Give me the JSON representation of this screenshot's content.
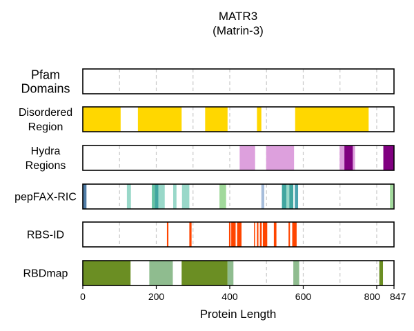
{
  "chart_data": {
    "type": "bar",
    "title": "MATR3",
    "subtitle": "(Matrin-3)",
    "xlabel": "Protein Length",
    "xlim": [
      0,
      847
    ],
    "xticks": [
      0,
      200,
      400,
      600,
      800,
      847
    ],
    "grid_x": [
      100,
      200,
      300,
      400,
      500,
      600,
      700,
      800
    ],
    "grid": "vertical dashed",
    "tracks": [
      {
        "label_lines": [
          "Pfam",
          "Domains"
        ],
        "segments": []
      },
      {
        "label_lines": [
          "Disordered",
          "Region"
        ],
        "segments": [
          {
            "start": 0,
            "end": 103,
            "color": "#ffd700"
          },
          {
            "start": 150,
            "end": 269,
            "color": "#ffd700"
          },
          {
            "start": 333,
            "end": 394,
            "color": "#ffd700"
          },
          {
            "start": 474,
            "end": 486,
            "color": "#ffd700"
          },
          {
            "start": 578,
            "end": 778,
            "color": "#ffd700"
          }
        ]
      },
      {
        "label_lines": [
          "Hydra",
          "Regions"
        ],
        "segments": [
          {
            "start": 427,
            "end": 469,
            "color": "#dda0dd"
          },
          {
            "start": 499,
            "end": 575,
            "color": "#dda0dd"
          },
          {
            "start": 699,
            "end": 712,
            "color": "#dda0dd"
          },
          {
            "start": 712,
            "end": 735,
            "color": "#800080"
          },
          {
            "start": 735,
            "end": 741,
            "color": "#dda0dd"
          },
          {
            "start": 818,
            "end": 847,
            "color": "#800080"
          }
        ]
      },
      {
        "label_lines": [
          "pepFAX-RIC"
        ],
        "segments": [
          {
            "start": 0,
            "end": 10,
            "color": "#4f7ca6"
          },
          {
            "start": 120,
            "end": 131,
            "color": "#99d8c9"
          },
          {
            "start": 188,
            "end": 196,
            "color": "#66c2a4"
          },
          {
            "start": 196,
            "end": 206,
            "color": "#41a6a0"
          },
          {
            "start": 206,
            "end": 223,
            "color": "#99d8c9"
          },
          {
            "start": 246,
            "end": 255,
            "color": "#99d8c9"
          },
          {
            "start": 270,
            "end": 290,
            "color": "#99d8c9"
          },
          {
            "start": 372,
            "end": 390,
            "color": "#a1d99b"
          },
          {
            "start": 486,
            "end": 494,
            "color": "#a6bddb"
          },
          {
            "start": 542,
            "end": 554,
            "color": "#41a6a0"
          },
          {
            "start": 554,
            "end": 562,
            "color": "#99d8c9"
          },
          {
            "start": 562,
            "end": 573,
            "color": "#41a6a0"
          },
          {
            "start": 577,
            "end": 586,
            "color": "#4ba3b0"
          },
          {
            "start": 836,
            "end": 845,
            "color": "#a1d99b"
          }
        ]
      },
      {
        "label_lines": [
          "RBS-ID"
        ],
        "segments": [
          {
            "start": 229,
            "end": 233,
            "color": "#ff4500"
          },
          {
            "start": 290,
            "end": 296,
            "color": "#ff4500"
          },
          {
            "start": 398,
            "end": 402,
            "color": "#ff4500"
          },
          {
            "start": 404,
            "end": 416,
            "color": "#ff4500"
          },
          {
            "start": 420,
            "end": 432,
            "color": "#ff4500"
          },
          {
            "start": 466,
            "end": 469,
            "color": "#ff4500"
          },
          {
            "start": 474,
            "end": 478,
            "color": "#ff4500"
          },
          {
            "start": 482,
            "end": 487,
            "color": "#ff4500"
          },
          {
            "start": 490,
            "end": 502,
            "color": "#ff4500"
          },
          {
            "start": 520,
            "end": 527,
            "color": "#ff4500"
          },
          {
            "start": 560,
            "end": 564,
            "color": "#ff4500"
          },
          {
            "start": 570,
            "end": 582,
            "color": "#ff4500"
          }
        ]
      },
      {
        "label_lines": [
          "RBDmap"
        ],
        "segments": [
          {
            "start": 0,
            "end": 130,
            "color": "#6b8e23"
          },
          {
            "start": 181,
            "end": 245,
            "color": "#8fbc8f"
          },
          {
            "start": 269,
            "end": 394,
            "color": "#6b8e23"
          },
          {
            "start": 394,
            "end": 410,
            "color": "#8fbc8f"
          },
          {
            "start": 573,
            "end": 589,
            "color": "#8fbc8f"
          },
          {
            "start": 807,
            "end": 817,
            "color": "#6b8e23"
          }
        ]
      }
    ]
  }
}
